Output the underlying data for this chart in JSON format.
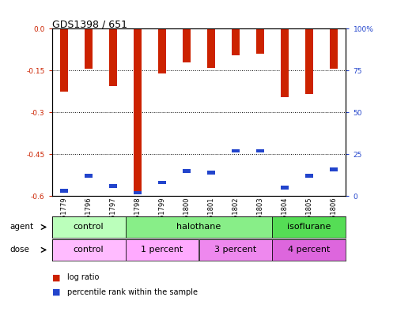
{
  "title": "GDS1398 / 651",
  "samples": [
    "GSM61779",
    "GSM61796",
    "GSM61797",
    "GSM61798",
    "GSM61799",
    "GSM61800",
    "GSM61801",
    "GSM61802",
    "GSM61803",
    "GSM61804",
    "GSM61805",
    "GSM61806"
  ],
  "log_ratios": [
    -0.225,
    -0.145,
    -0.205,
    -0.595,
    -0.16,
    -0.12,
    -0.14,
    -0.095,
    -0.09,
    -0.245,
    -0.235,
    -0.145
  ],
  "percentile_ranks": [
    3,
    12,
    6,
    2,
    8,
    15,
    14,
    27,
    27,
    5,
    12,
    16
  ],
  "ylim_left": [
    -0.6,
    0.0
  ],
  "ylim_right": [
    0,
    100
  ],
  "yticks_left": [
    0.0,
    -0.15,
    -0.3,
    -0.45,
    -0.6
  ],
  "yticks_right": [
    0,
    25,
    50,
    75,
    100
  ],
  "ytick_labels_right": [
    "0",
    "25",
    "50",
    "75",
    "100%"
  ],
  "bar_color": "#cc2200",
  "marker_color": "#2244cc",
  "agent_groups": [
    {
      "label": "control",
      "start": 0,
      "end": 3,
      "color": "#bbffbb"
    },
    {
      "label": "halothane",
      "start": 3,
      "end": 9,
      "color": "#88ee88"
    },
    {
      "label": "isoflurane",
      "start": 9,
      "end": 12,
      "color": "#55dd55"
    }
  ],
  "dose_groups": [
    {
      "label": "control",
      "start": 0,
      "end": 3,
      "color": "#ffbbff"
    },
    {
      "label": "1 percent",
      "start": 3,
      "end": 6,
      "color": "#ffaaff"
    },
    {
      "label": "3 percent",
      "start": 6,
      "end": 9,
      "color": "#ee88ee"
    },
    {
      "label": "4 percent",
      "start": 9,
      "end": 12,
      "color": "#dd66dd"
    }
  ],
  "ylabel_left_color": "#cc2200",
  "ylabel_right_color": "#2244cc",
  "bar_width": 0.35,
  "tick_label_fontsize": 6.5,
  "sample_label_fontsize": 6,
  "group_label_fontsize": 8,
  "legend_fontsize": 7
}
